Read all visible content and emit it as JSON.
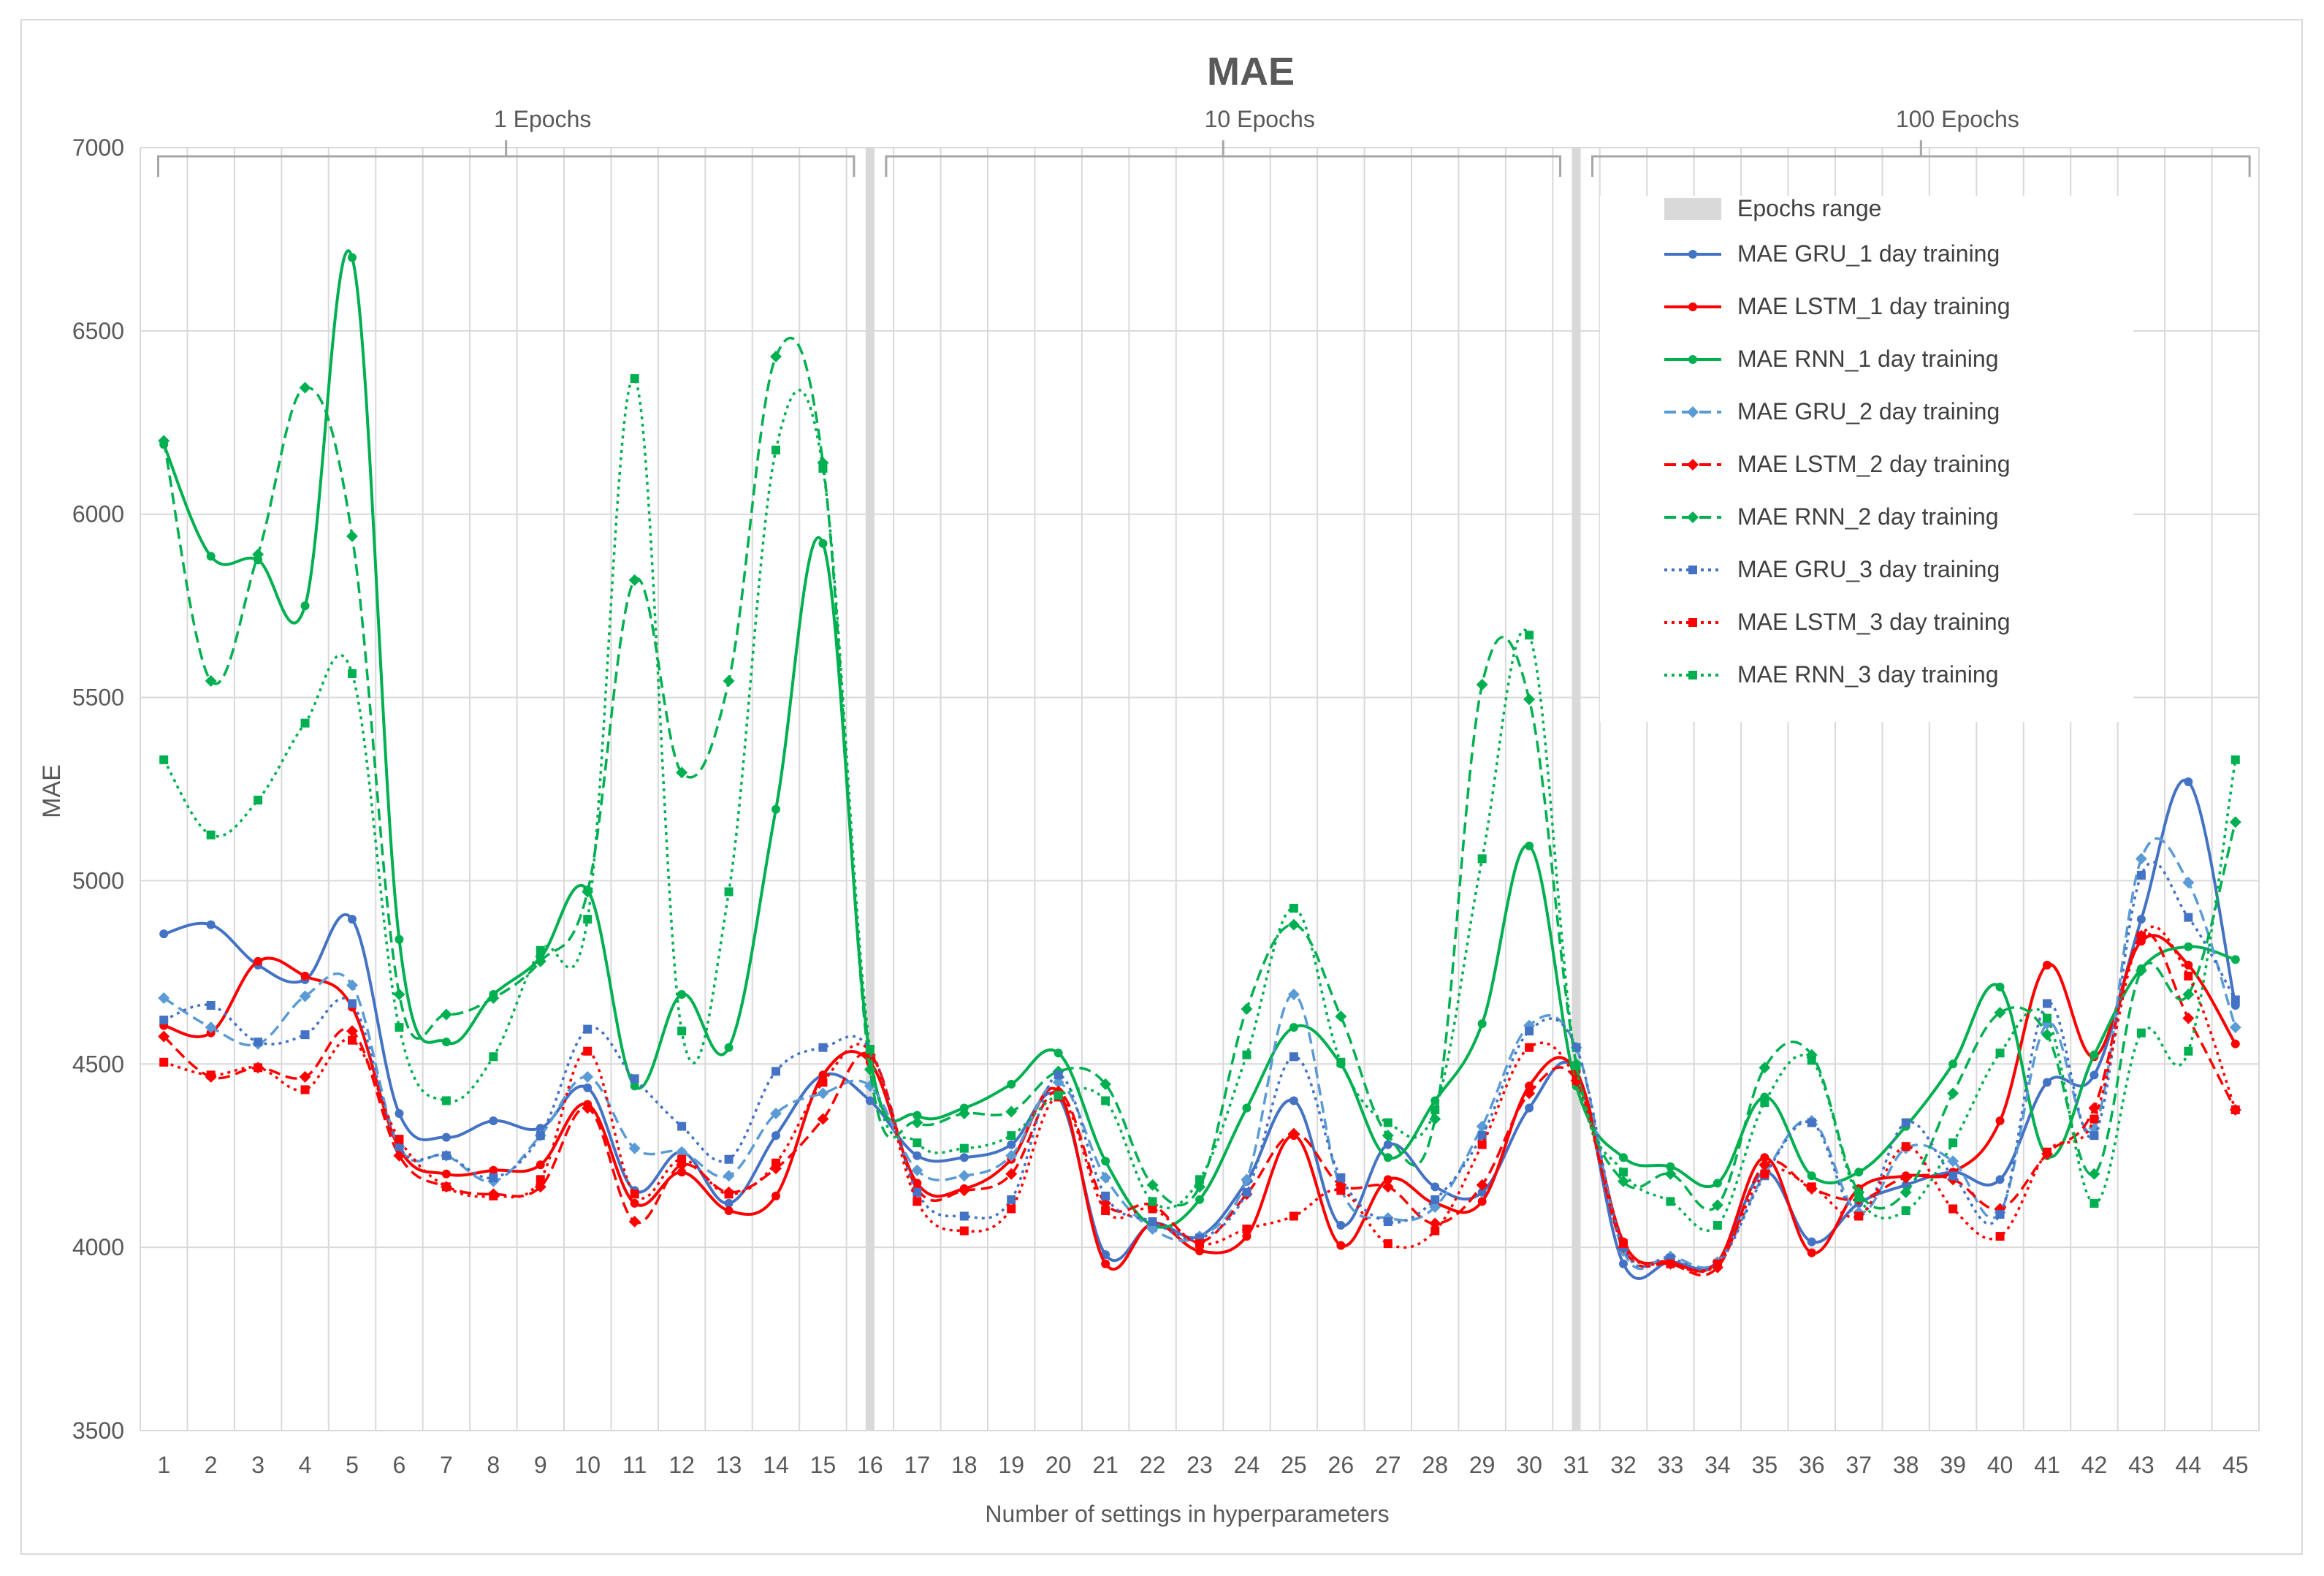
{
  "colors": {
    "gru": "#4472c4",
    "gru_light": "#5b9bd5",
    "lstm": "#ff0000",
    "rnn": "#00b050",
    "grid": "#d9d9d9",
    "axis_text": "#595959",
    "epochs_band": "#d9d9d9"
  },
  "chart_data": {
    "type": "line",
    "title": "MAE",
    "xlabel": "Number of settings in hyperparameters",
    "ylabel": "MAE",
    "ylim": [
      3500,
      7000
    ],
    "yticks": [
      3500,
      4000,
      4500,
      5000,
      5500,
      6000,
      6500,
      7000
    ],
    "xlim": [
      1,
      45
    ],
    "x": [
      1,
      2,
      3,
      4,
      5,
      6,
      7,
      8,
      9,
      10,
      11,
      12,
      13,
      14,
      15,
      16,
      17,
      18,
      19,
      20,
      21,
      22,
      23,
      24,
      25,
      26,
      27,
      28,
      29,
      30,
      31,
      32,
      33,
      34,
      35,
      36,
      37,
      38,
      39,
      40,
      41,
      42,
      43,
      44,
      45
    ],
    "grid": true,
    "epoch_groups": [
      {
        "label": "1 Epochs",
        "from": 1,
        "to": 16
      },
      {
        "label": "10 Epochs",
        "from": 16,
        "to": 31
      },
      {
        "label": "100 Epochs",
        "from": 31,
        "to": 45
      }
    ],
    "epoch_dividers": [
      16,
      31
    ],
    "legend_position": "right, upper area",
    "legend_band_label": "Epochs range",
    "series": [
      {
        "name": "MAE GRU_1 day training",
        "color": "#4472c4",
        "dash": "solid",
        "marker": "circle",
        "values": [
          4855,
          4880,
          4770,
          4730,
          4895,
          4365,
          4300,
          4345,
          4325,
          4435,
          4155,
          4260,
          4120,
          4305,
          4470,
          4400,
          4250,
          4245,
          4280,
          4410,
          3980,
          4065,
          4030,
          4180,
          4400,
          4060,
          4280,
          4165,
          4150,
          4380,
          4480,
          3955,
          3960,
          3960,
          4205,
          4015,
          4120,
          4170,
          4205,
          4185,
          4450,
          4470,
          4895,
          5270,
          4660
        ]
      },
      {
        "name": "MAE LSTM_1 day training",
        "color": "#ff0000",
        "dash": "solid",
        "marker": "circle",
        "values": [
          4605,
          4585,
          4780,
          4740,
          4655,
          4270,
          4200,
          4210,
          4225,
          4390,
          4120,
          4205,
          4100,
          4140,
          4470,
          4505,
          4175,
          4160,
          4240,
          4425,
          3955,
          4065,
          3990,
          4030,
          4305,
          4005,
          4185,
          4120,
          4125,
          4440,
          4480,
          4015,
          3960,
          3960,
          4245,
          3985,
          4160,
          4195,
          4205,
          4345,
          4770,
          4520,
          4835,
          4770,
          4555
        ]
      },
      {
        "name": "MAE RNN_1 day training",
        "color": "#00b050",
        "dash": "solid",
        "marker": "circle",
        "values": [
          6190,
          5885,
          5875,
          5750,
          6700,
          4840,
          4560,
          4690,
          4790,
          4975,
          4440,
          4690,
          4545,
          5195,
          5920,
          4520,
          4360,
          4380,
          4445,
          4530,
          4235,
          4060,
          4130,
          4380,
          4600,
          4500,
          4245,
          4400,
          4610,
          5095,
          4440,
          4245,
          4220,
          4175,
          4410,
          4195,
          4205,
          4330,
          4500,
          4710,
          4250,
          4525,
          4760,
          4820,
          4785
        ]
      },
      {
        "name": "MAE GRU_2 day training",
        "color": "#5b9bd5",
        "dash": "dash",
        "marker": "diamond",
        "values": [
          4680,
          4600,
          4555,
          4685,
          4715,
          4275,
          4250,
          4180,
          4305,
          4465,
          4270,
          4260,
          4195,
          4365,
          4420,
          4440,
          4210,
          4195,
          4250,
          4450,
          4190,
          4050,
          4030,
          4185,
          4690,
          4160,
          4080,
          4110,
          4330,
          4605,
          4545,
          3990,
          3975,
          3960,
          4200,
          4345,
          4095,
          4270,
          4235,
          4095,
          4610,
          4325,
          5060,
          4995,
          4600
        ]
      },
      {
        "name": "MAE LSTM_2 day training",
        "color": "#ff0000",
        "dash": "dash",
        "marker": "diamond",
        "values": [
          4575,
          4465,
          4490,
          4465,
          4590,
          4250,
          4165,
          4145,
          4165,
          4380,
          4070,
          4225,
          4150,
          4215,
          4350,
          4525,
          4160,
          4155,
          4200,
          4425,
          4120,
          4115,
          4015,
          4145,
          4310,
          4170,
          4165,
          4065,
          4170,
          4420,
          4455,
          4000,
          3955,
          3945,
          4225,
          4160,
          4130,
          4190,
          4185,
          4105,
          4255,
          4380,
          4850,
          4625,
          4375
        ]
      },
      {
        "name": "MAE RNN_2 day training",
        "color": "#00b050",
        "dash": "dash",
        "marker": "diamond",
        "values": [
          6200,
          5545,
          5890,
          6345,
          5940,
          4690,
          4635,
          4680,
          4780,
          4970,
          5820,
          5295,
          5545,
          6430,
          6140,
          4485,
          4340,
          4365,
          4370,
          4480,
          4445,
          4170,
          4165,
          4650,
          4880,
          4630,
          4305,
          4350,
          5535,
          5495,
          4500,
          4180,
          4200,
          4115,
          4490,
          4525,
          4150,
          4150,
          4420,
          4640,
          4580,
          4200,
          4755,
          4690,
          5160
        ]
      },
      {
        "name": "MAE GRU_3 day training",
        "color": "#4472c4",
        "dash": "dot",
        "marker": "square",
        "values": [
          4620,
          4660,
          4560,
          4580,
          4665,
          4275,
          4250,
          4190,
          4305,
          4595,
          4460,
          4330,
          4240,
          4480,
          4545,
          4540,
          4150,
          4085,
          4130,
          4470,
          4140,
          4070,
          4025,
          4150,
          4520,
          4190,
          4070,
          4130,
          4305,
          4590,
          4545,
          4000,
          3970,
          3955,
          4195,
          4340,
          4085,
          4340,
          4195,
          4090,
          4665,
          4305,
          5015,
          4900,
          4675
        ]
      },
      {
        "name": "MAE LSTM_3 day training",
        "color": "#ff0000",
        "dash": "dot",
        "marker": "square",
        "values": [
          4505,
          4470,
          4490,
          4430,
          4565,
          4295,
          4165,
          4140,
          4185,
          4535,
          4145,
          4240,
          4145,
          4230,
          4450,
          4535,
          4125,
          4045,
          4105,
          4410,
          4100,
          4105,
          4010,
          4050,
          4085,
          4155,
          4010,
          4045,
          4280,
          4545,
          4455,
          4010,
          3955,
          3955,
          4200,
          4165,
          4085,
          4275,
          4105,
          4030,
          4260,
          4350,
          4850,
          4740,
          4375
        ]
      },
      {
        "name": "MAE RNN_3 day training",
        "color": "#00b050",
        "dash": "dot",
        "marker": "square",
        "values": [
          5330,
          5125,
          5220,
          5430,
          5565,
          4600,
          4400,
          4520,
          4810,
          4895,
          6370,
          4590,
          4970,
          6175,
          6125,
          4540,
          4285,
          4270,
          4305,
          4415,
          4400,
          4125,
          4185,
          4525,
          4925,
          4505,
          4340,
          4375,
          5060,
          5670,
          4495,
          4205,
          4125,
          4060,
          4395,
          4510,
          4135,
          4100,
          4285,
          4530,
          4625,
          4120,
          4585,
          4535,
          5330
        ]
      }
    ]
  }
}
